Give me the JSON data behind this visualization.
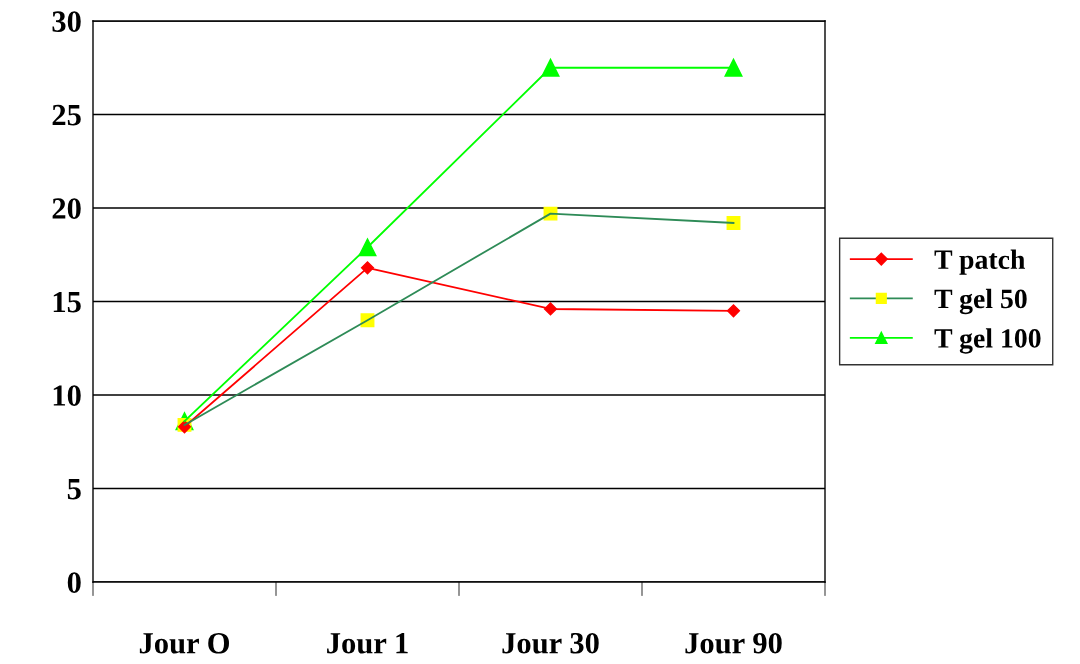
{
  "chart_data": {
    "type": "line",
    "categories": [
      "Jour O",
      "Jour 1",
      "Jour 30",
      "Jour 90"
    ],
    "series": [
      {
        "name": "T patch",
        "color": "#ff0000",
        "marker": "diamond",
        "values": [
          8.3,
          16.8,
          14.6,
          14.5
        ]
      },
      {
        "name": "T gel 50",
        "color": "#2e8b57",
        "colors": [
          "#ffff00",
          "#ffff00",
          "#ffff00",
          "#ffff00"
        ],
        "marker": "square",
        "values": [
          8.4,
          14.0,
          19.7,
          19.2
        ]
      },
      {
        "name": "T gel 100",
        "color": "#00ff00",
        "marker": "triangle",
        "values": [
          8.6,
          17.9,
          27.5,
          27.5
        ]
      }
    ],
    "ylim": [
      0,
      30
    ],
    "yticks": [
      0,
      5,
      10,
      15,
      20,
      25,
      30
    ],
    "grid": "y",
    "legend": "right",
    "line_style": "solid"
  }
}
